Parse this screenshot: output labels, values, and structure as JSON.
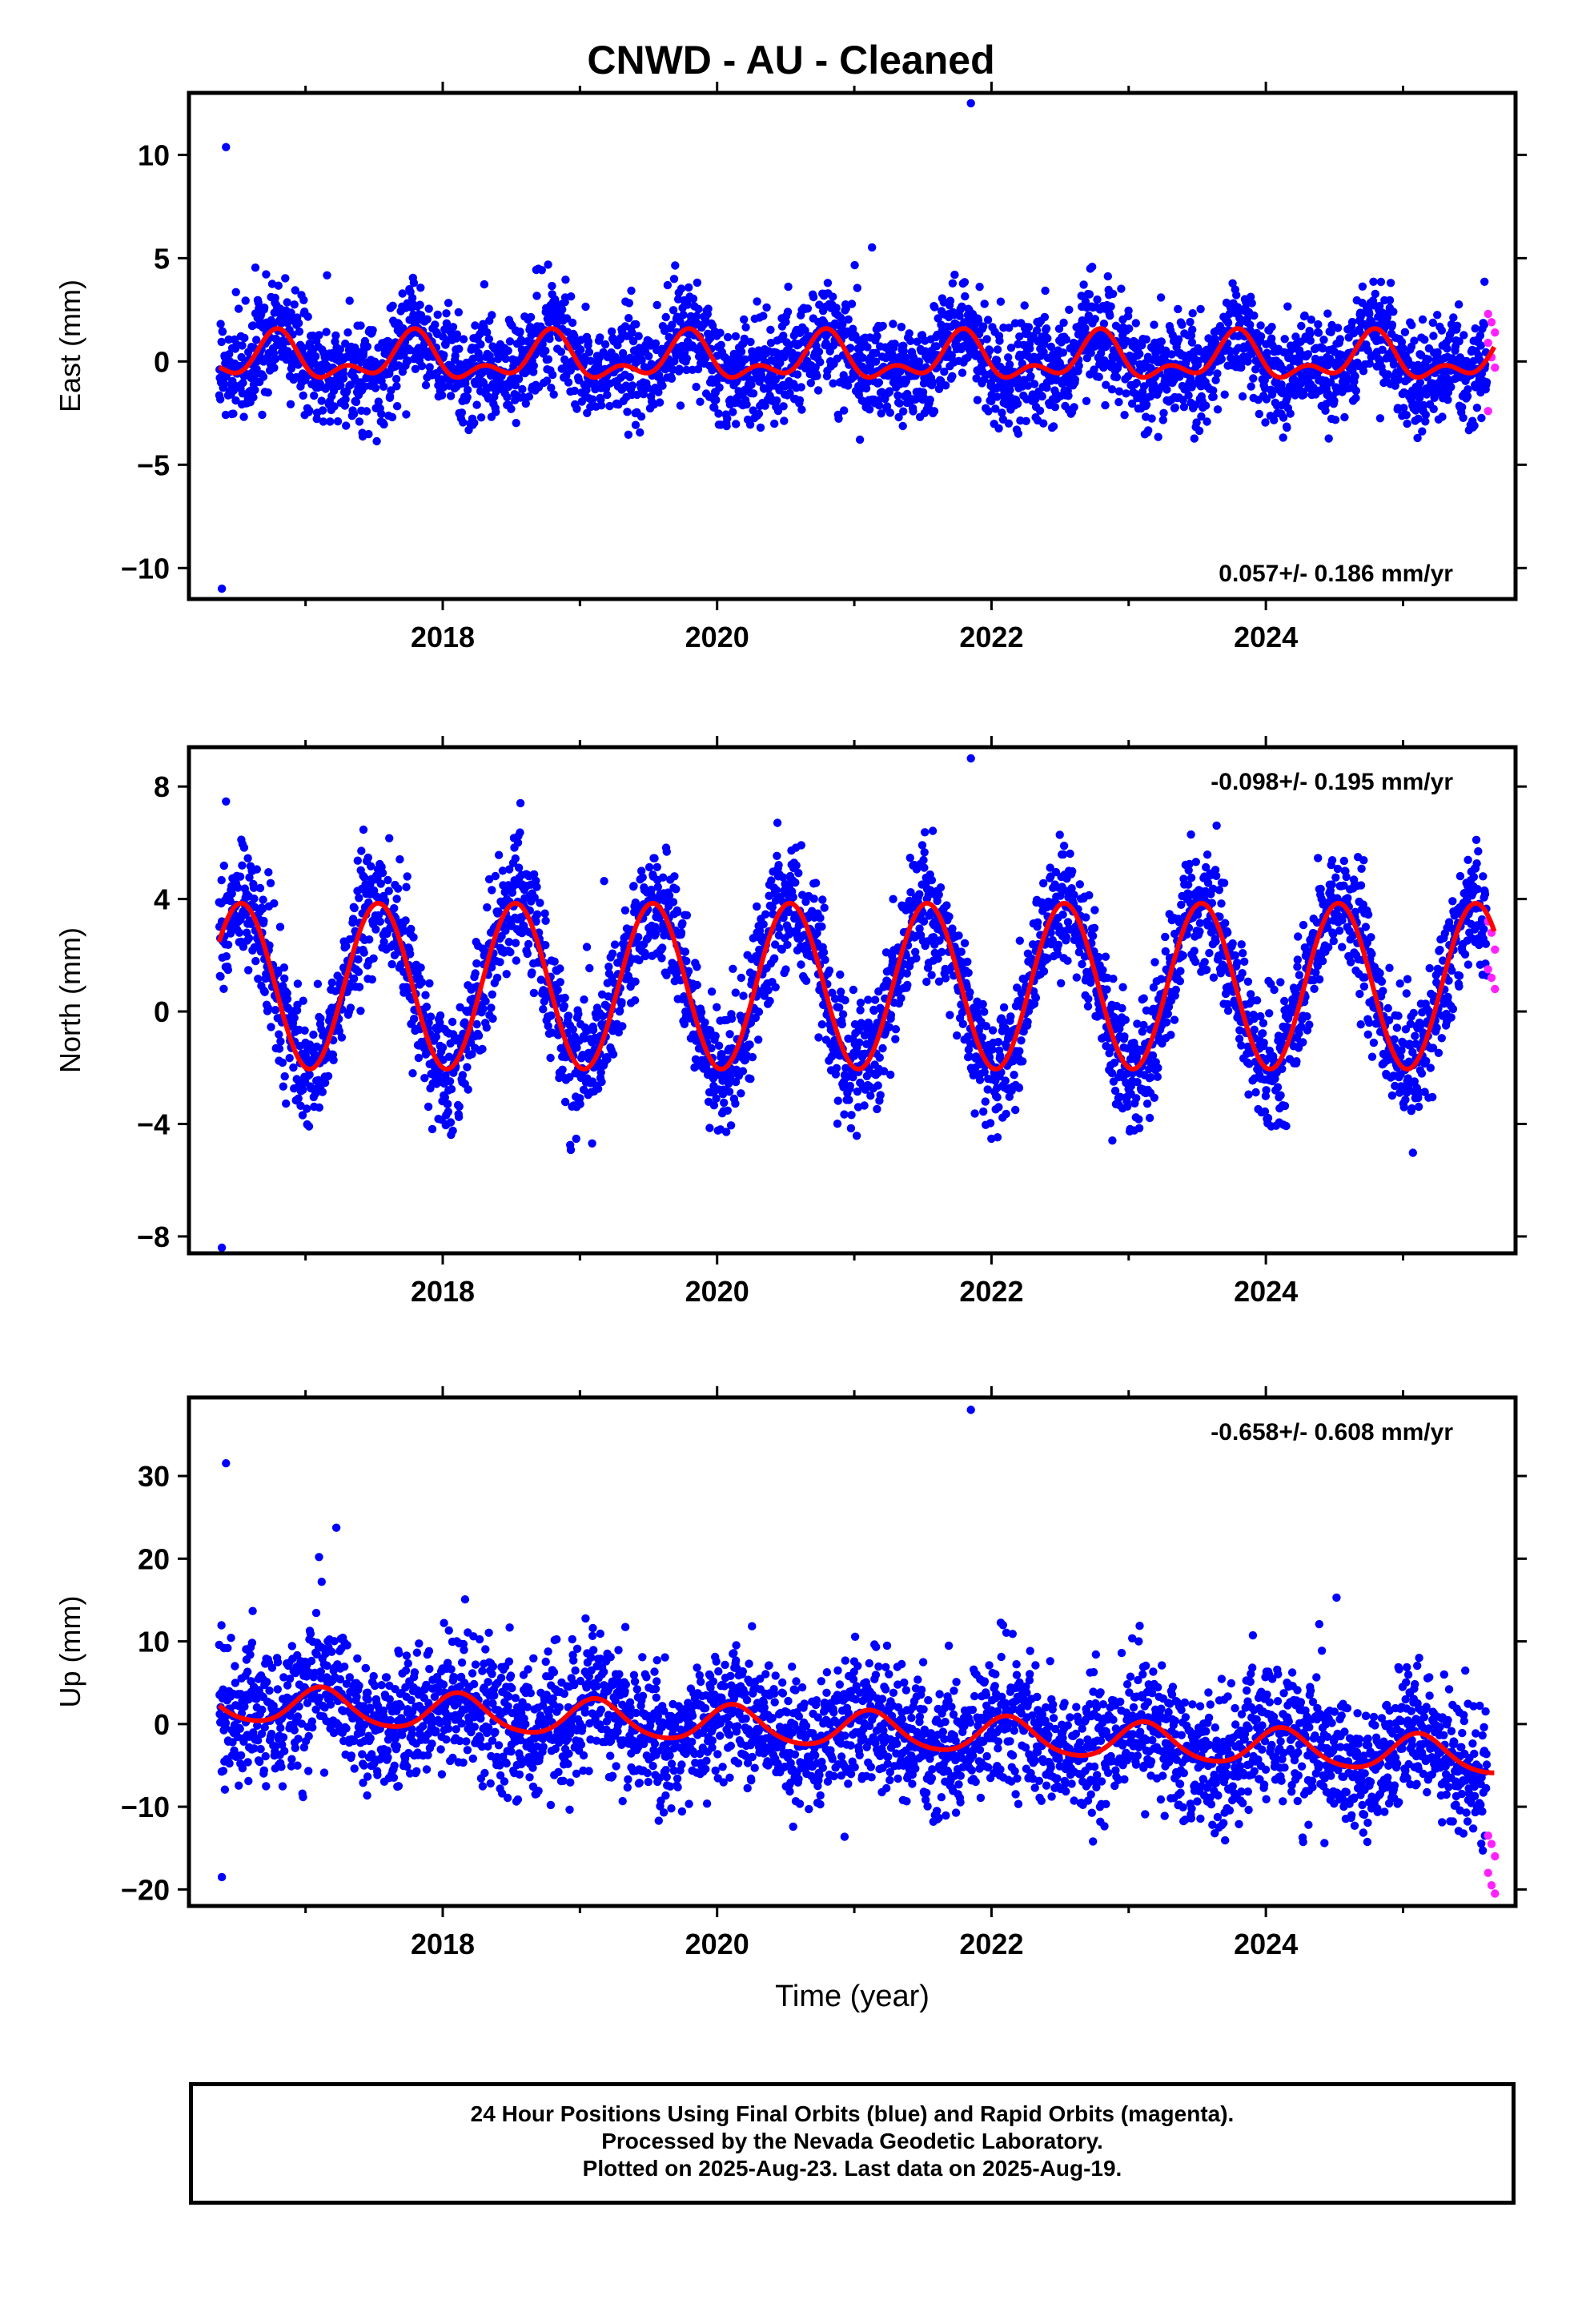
{
  "header": {
    "title": "CNWD  - AU - Cleaned"
  },
  "colors": {
    "final": "#0000ff",
    "rapid": "#ff22ff",
    "fit": "#ff0000",
    "frame": "#000000"
  },
  "chart_data": [
    {
      "type": "scatter",
      "ylabel": "East (mm)",
      "xlabel": "",
      "rate_label": "0.057+/- 0.186 mm/yr",
      "xlim": [
        2016.15,
        2025.82
      ],
      "ylim": [
        -11.5,
        13.0
      ],
      "x_ticks": [
        2018,
        2020,
        2022,
        2024
      ],
      "y_ticks": [
        10,
        5,
        0,
        -5,
        -10
      ],
      "y_tick_labels": [
        "10",
        "5",
        "0",
        "−5",
        "−10"
      ],
      "series": [
        {
          "role": "final",
          "x_range": [
            2016.37,
            2025.61
          ],
          "values_range": [
            -11.0,
            12.5
          ]
        },
        {
          "role": "rapid",
          "x_range": [
            2025.62,
            2025.67
          ],
          "values": [
            2.3,
            1.9,
            1.4,
            0.9,
            0.2,
            -0.3,
            -2.4
          ]
        },
        {
          "role": "fit",
          "model": {
            "mean": 0.1,
            "annual_amp": 0.9,
            "annual_peak": 0.78,
            "semi_amp": 0.6,
            "semi_peak": 0.3
          }
        }
      ]
    },
    {
      "type": "scatter",
      "ylabel": "North (mm)",
      "xlabel": "",
      "rate_label": "-0.098+/- 0.195 mm/yr",
      "xlim": [
        2016.15,
        2025.82
      ],
      "ylim": [
        -8.6,
        9.4
      ],
      "x_ticks": [
        2018,
        2020,
        2022,
        2024
      ],
      "y_ticks": [
        8,
        4,
        0,
        -4,
        -8
      ],
      "y_tick_labels": [
        "8",
        "4",
        "0",
        "−4",
        "−8"
      ],
      "series": [
        {
          "role": "final",
          "x_range": [
            2016.37,
            2025.61
          ],
          "values_range": [
            -8.4,
            9.0
          ]
        },
        {
          "role": "rapid",
          "x_range": [
            2025.62,
            2025.67
          ],
          "values": [
            3.2,
            2.8,
            2.2,
            1.5,
            1.2,
            0.8
          ]
        },
        {
          "role": "fit",
          "model": {
            "mean": 0.9,
            "annual_amp": 2.95,
            "annual_peak": 0.53,
            "semi_amp": 0.0,
            "semi_peak": 0.0
          }
        }
      ]
    },
    {
      "type": "scatter",
      "ylabel": "Up (mm)",
      "xlabel": "Time (year)",
      "rate_label": "-0.658+/- 0.608 mm/yr",
      "xlim": [
        2016.15,
        2025.82
      ],
      "ylim": [
        -22.0,
        39.5
      ],
      "x_ticks": [
        2018,
        2020,
        2022,
        2024
      ],
      "y_ticks": [
        30,
        20,
        10,
        0,
        -10,
        -20
      ],
      "y_tick_labels": [
        "30",
        "20",
        "10",
        "0",
        "−10",
        "−20"
      ],
      "series": [
        {
          "role": "final",
          "x_range": [
            2016.37,
            2025.61
          ],
          "values_range": [
            -18.5,
            38.0
          ]
        },
        {
          "role": "rapid",
          "x_range": [
            2025.62,
            2025.67
          ],
          "values": [
            -13.5,
            -14.5,
            -16.0,
            -18.0,
            -19.5,
            -20.5
          ]
        },
        {
          "role": "fit",
          "model": {
            "mean": 2.5,
            "trend": -0.7,
            "annual_amp": 2.2,
            "annual_peak": 0.12,
            "semi_amp": 0.3,
            "semi_peak": 0.1
          }
        }
      ]
    }
  ],
  "caption": {
    "line1": "24 Hour Positions Using Final Orbits (blue) and Rapid Orbits (magenta).",
    "line2": "Processed by the Nevada Geodetic Laboratory.",
    "line3": "Plotted on 2025-Aug-23. Last data on 2025-Aug-19."
  }
}
